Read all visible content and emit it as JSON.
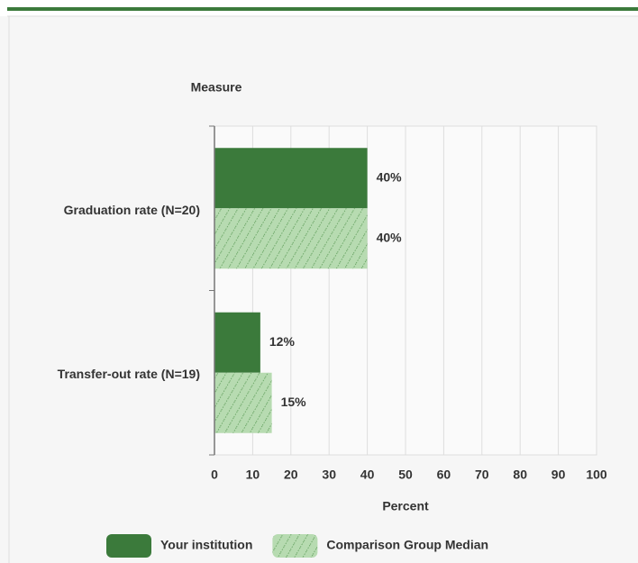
{
  "chart_data": {
    "type": "barh",
    "y_axis_label": "Measure",
    "x_axis_label": "Percent",
    "categories": [
      "Graduation rate (N=20)",
      "Transfer-out rate (N=19)"
    ],
    "series": [
      {
        "name": "Your institution",
        "color": "#3b7a3b",
        "values": [
          40,
          12
        ],
        "value_labels": [
          "40%",
          "12%"
        ]
      },
      {
        "name": "Comparison Group Median",
        "color": "#b7dbb1",
        "hatch": true,
        "values": [
          40,
          15
        ],
        "value_labels": [
          "40%",
          "15%"
        ]
      }
    ],
    "xlim": [
      0,
      100
    ],
    "xticks": [
      0,
      10,
      20,
      30,
      40,
      50,
      60,
      70,
      80,
      90,
      100
    ],
    "grid": true,
    "legend": "bottom"
  }
}
